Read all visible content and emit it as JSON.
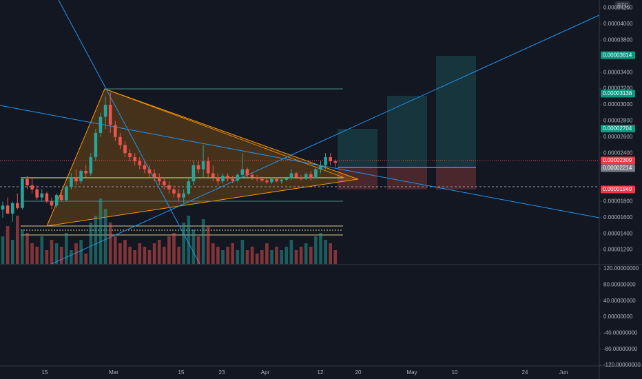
{
  "chart_data": {
    "type": "candlestick",
    "symbol": "BTC",
    "up_color": "#26a69a",
    "down_color": "#ef5350",
    "open": [
      1.7e-05,
      1.75e-05,
      1.65e-05,
      1.78e-05,
      1.72e-05,
      2.08e-05,
      2e-05,
      1.95e-05,
      1.85e-05,
      1.9e-05,
      1.8e-05,
      1.75e-05,
      1.88e-05,
      1.82e-05,
      1.98e-05,
      2.1e-05,
      2.05e-05,
      2.18e-05,
      2.15e-05,
      2.35e-05,
      2.65e-05,
      2.85e-05,
      3e-05,
      2.75e-05,
      2.6e-05,
      2.5e-05,
      2.4e-05,
      2.35e-05,
      2.3e-05,
      2.25e-05,
      2.2e-05,
      2.15e-05,
      2.1e-05,
      2.05e-05,
      2e-05,
      1.95e-05,
      1.9e-05,
      1.85e-05,
      1.9e-05,
      2.05e-05,
      2.25e-05,
      2.2e-05,
      2.3e-05,
      2.15e-05,
      2.1e-05,
      2.05e-05,
      2.12e-05,
      2.08e-05,
      2.06e-05,
      2.13e-05,
      2.2e-05,
      2.13e-05,
      2.1e-05,
      2.08e-05,
      2.06e-05,
      2.04e-05,
      2.08e-05,
      2.05e-05,
      2.07e-05,
      2.09e-05,
      2.15e-05,
      2.1e-05,
      2.08e-05,
      2.14e-05,
      2.09e-05,
      2.2e-05,
      2.25e-05,
      2.35e-05,
      2.3e-05
    ],
    "high": [
      1.8e-05,
      1.85e-05,
      1.8e-05,
      1.9e-05,
      2.1e-05,
      2.12e-05,
      2.1e-05,
      2e-05,
      1.95e-05,
      1.92e-05,
      1.85e-05,
      1.9e-05,
      1.95e-05,
      2e-05,
      2.15e-05,
      2.2e-05,
      2.2e-05,
      2.25e-05,
      2.4e-05,
      2.7e-05,
      2.9e-05,
      3.1e-05,
      3.15e-05,
      2.8e-05,
      2.65e-05,
      2.55e-05,
      2.45e-05,
      2.4e-05,
      2.35e-05,
      2.3e-05,
      2.25e-05,
      2.2e-05,
      2.15e-05,
      2.1e-05,
      2.05e-05,
      2e-05,
      1.95e-05,
      1.95e-05,
      2.1e-05,
      2.3e-05,
      2.3e-05,
      2.5e-05,
      2.35e-05,
      2.25e-05,
      2.15e-05,
      2.15e-05,
      2.15e-05,
      2.12e-05,
      2.15e-05,
      2.4e-05,
      2.22e-05,
      2.16e-05,
      2.13e-05,
      2.11e-05,
      2.09e-05,
      2.1e-05,
      2.1e-05,
      2.08e-05,
      2.11e-05,
      2.2e-05,
      2.17e-05,
      2.13e-05,
      2.16e-05,
      2.18e-05,
      2.22e-05,
      2.3e-05,
      2.4e-05,
      2.4e-05,
      2.32e-05
    ],
    "low": [
      1.6e-05,
      1.65e-05,
      1.55e-05,
      1.7e-05,
      1.7e-05,
      1.95e-05,
      1.9e-05,
      1.82e-05,
      1.8e-05,
      1.78e-05,
      1.7e-05,
      1.72e-05,
      1.8e-05,
      1.8e-05,
      1.95e-05,
      2e-05,
      2.02e-05,
      2.1e-05,
      2.12e-05,
      2.3e-05,
      2.6e-05,
      2.7e-05,
      2.65e-05,
      2.55e-05,
      2.45e-05,
      2.35e-05,
      2.3e-05,
      2.25e-05,
      2.2e-05,
      2.15e-05,
      2.1e-05,
      2.05e-05,
      2e-05,
      1.95e-05,
      1.9e-05,
      1.85e-05,
      1.8e-05,
      1.78e-05,
      1.88e-05,
      2e-05,
      2.15e-05,
      2.1e-05,
      2.1e-05,
      2.05e-05,
      2e-05,
      2.02e-05,
      2.05e-05,
      2.03e-05,
      2.04e-05,
      2.1e-05,
      2.1e-05,
      2.07e-05,
      2.05e-05,
      2.04e-05,
      2.02e-05,
      2.02e-05,
      2.04e-05,
      2.02e-05,
      2.05e-05,
      2.07e-05,
      2.08e-05,
      2.06e-05,
      2.07e-05,
      2.06e-05,
      2.08e-05,
      2.15e-05,
      2.2e-05,
      2.25e-05,
      2.22e-05
    ],
    "close": [
      1.75e-05,
      1.65e-05,
      1.78e-05,
      1.72e-05,
      2.08e-05,
      2e-05,
      1.95e-05,
      1.85e-05,
      1.9e-05,
      1.8e-05,
      1.75e-05,
      1.88e-05,
      1.82e-05,
      1.98e-05,
      2.1e-05,
      2.05e-05,
      2.18e-05,
      2.15e-05,
      2.35e-05,
      2.65e-05,
      2.85e-05,
      3e-05,
      2.75e-05,
      2.6e-05,
      2.5e-05,
      2.4e-05,
      2.35e-05,
      2.3e-05,
      2.25e-05,
      2.2e-05,
      2.15e-05,
      2.1e-05,
      2.05e-05,
      2e-05,
      1.95e-05,
      1.9e-05,
      1.85e-05,
      1.9e-05,
      2.05e-05,
      2.25e-05,
      2.2e-05,
      2.3e-05,
      2.15e-05,
      2.1e-05,
      2.05e-05,
      2.12e-05,
      2.08e-05,
      2.06e-05,
      2.13e-05,
      2.2e-05,
      2.13e-05,
      2.1e-05,
      2.08e-05,
      2.06e-05,
      2.04e-05,
      2.08e-05,
      2.05e-05,
      2.07e-05,
      2.09e-05,
      2.15e-05,
      2.1e-05,
      2.08e-05,
      2.14e-05,
      2.09e-05,
      2.2e-05,
      2.25e-05,
      2.35e-05,
      2.3e-05,
      2.28e-05
    ],
    "volume": [
      40,
      55,
      35,
      70,
      50,
      45,
      30,
      25,
      40,
      20,
      35,
      30,
      25,
      45,
      20,
      30,
      35,
      15,
      60,
      70,
      95,
      80,
      60,
      40,
      30,
      35,
      25,
      20,
      30,
      25,
      20,
      30,
      35,
      25,
      40,
      45,
      25,
      60,
      70,
      50,
      40,
      65,
      55,
      30,
      25,
      20,
      25,
      30,
      20,
      35,
      20,
      25,
      15,
      20,
      30,
      20,
      25,
      20,
      25,
      35,
      20,
      25,
      30,
      25,
      40,
      45,
      35,
      30,
      20
    ],
    "ylim": [
      1.026e-05,
      4.299e-05
    ],
    "yticks": [
      {
        "value": 4.2e-05,
        "label": "0.00004200"
      },
      {
        "value": 4e-05,
        "label": "0.00004000"
      },
      {
        "value": 3.8e-05,
        "label": "0.00003800"
      },
      {
        "value": 3.4e-05,
        "label": "0.00003400"
      },
      {
        "value": 3.2e-05,
        "label": "0.00003200"
      },
      {
        "value": 3e-05,
        "label": "0.00003000"
      },
      {
        "value": 2.8e-05,
        "label": "0.00002800"
      },
      {
        "value": 2.6e-05,
        "label": "0.00002600"
      },
      {
        "value": 2.4e-05,
        "label": "0.00002400"
      },
      {
        "value": 1.8e-05,
        "label": "0.00001800"
      },
      {
        "value": 1.6e-05,
        "label": "0.00001600"
      },
      {
        "value": 1.4e-05,
        "label": "0.00001400"
      },
      {
        "value": 1.2e-05,
        "label": "0.00001200"
      }
    ],
    "price_labels": [
      {
        "value": 3.614e-05,
        "label": "0.00003614",
        "color": "#089981"
      },
      {
        "value": 3.138e-05,
        "label": "0.00003138",
        "color": "#089981"
      },
      {
        "value": 2.704e-05,
        "label": "0.00002704",
        "color": "#089981"
      },
      {
        "value": 2.309e-05,
        "label": "0.00002309",
        "color": "#f23645"
      },
      {
        "value": 2.214e-05,
        "label": "0.00002214",
        "color": "#787b86"
      },
      {
        "value": 1.949e-05,
        "label": "0.00001949",
        "color": "#f23645"
      }
    ],
    "y2lim": [
      -120,
      128.6
    ],
    "y2ticks": [
      {
        "value": 120,
        "label": "120.00000000"
      },
      {
        "value": 80,
        "label": "80.00000000"
      },
      {
        "value": 40,
        "label": "40.00000000"
      },
      {
        "value": 0,
        "label": "0.00000000"
      },
      {
        "value": -40,
        "label": "-40.00000000"
      },
      {
        "value": -80,
        "label": "-80.00000000"
      },
      {
        "value": -120,
        "label": "-120.00000000"
      }
    ],
    "xticks": [
      "15",
      "Mar",
      "15",
      "23",
      "Apr",
      "12",
      "20",
      "May",
      "10",
      "24",
      "Jun"
    ]
  }
}
